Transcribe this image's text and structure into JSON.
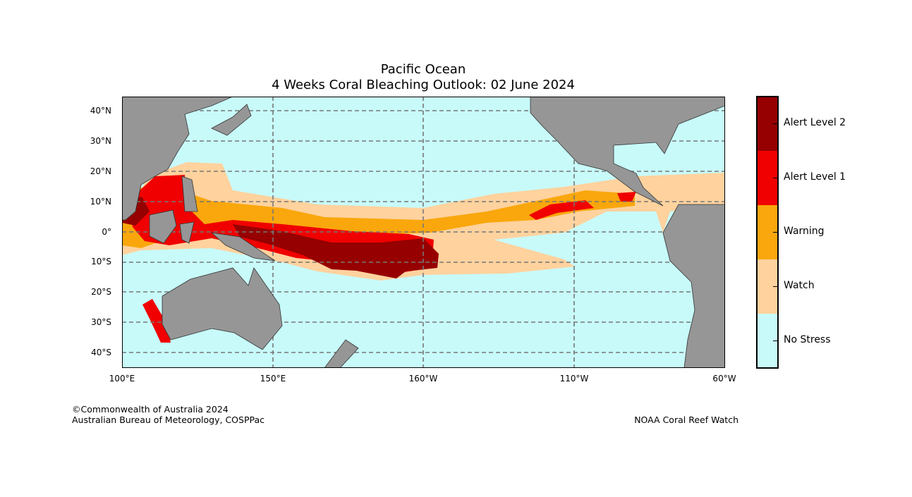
{
  "title": {
    "line1": "Pacific Ocean",
    "line2": "4 Weeks Coral Bleaching Outlook: 02 June 2024"
  },
  "lat_ticks": [
    "40°N",
    "30°N",
    "20°N",
    "10°N",
    "0°",
    "10°S",
    "20°S",
    "30°S",
    "40°S"
  ],
  "lon_ticks": [
    "100°E",
    "150°E",
    "160°W",
    "110°W",
    "60°W"
  ],
  "legend": [
    {
      "label": "Alert Level 2",
      "color": "#960000"
    },
    {
      "label": "Alert Level 1",
      "color": "#F00000"
    },
    {
      "label": "Warning",
      "color": "#F9A70C"
    },
    {
      "label": "Watch",
      "color": "#FFD29E"
    },
    {
      "label": "No Stress",
      "color": "#C8FAFA"
    }
  ],
  "credits": {
    "left_line1": "©Commonwealth of Australia 2024",
    "left_line2": "Australian Bureau of Meteorology, COSPPac",
    "right": "NOAA Coral Reef Watch"
  },
  "colors": {
    "land": "#969696",
    "ocean": "#C8FAFA"
  }
}
